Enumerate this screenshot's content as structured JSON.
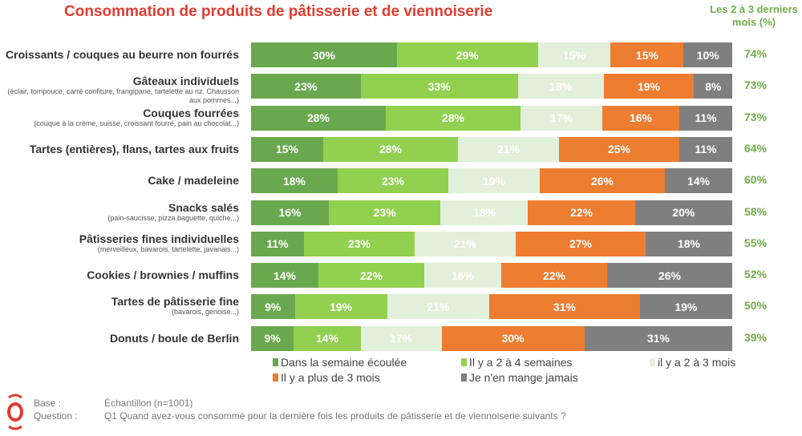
{
  "title": "Consommation de produits de pâtisserie et de viennoiserie",
  "total_header": "Les 2 à 3 derniers mois (%)",
  "colors": [
    "#6aa84f",
    "#92d050",
    "#e2efda",
    "#ed7d31",
    "#7f7f7f"
  ],
  "total_color": "#70ad47",
  "chart_data": {
    "type": "bar",
    "orientation": "horizontal",
    "stacked": true,
    "title": "Consommation de produits de pâtisserie et de viennoiserie",
    "legend_position": "bottom",
    "series_names": [
      "Dans la semaine écoulée",
      "Il y a 2 à 4 semaines",
      "il y a 2 à 3 mois",
      "Il y a plus de 3 mois",
      "Je n'en mange jamais"
    ],
    "rows": [
      {
        "label": "Croissants / couques au beurre non fourrés",
        "sub": "",
        "values": [
          30,
          29,
          15,
          15,
          10
        ],
        "total": "74%"
      },
      {
        "label": "Gâteaux individuels",
        "sub": "(éclair, tompouce, carré confiture, frangipane, tartelette au riz, Chausson aux pommes...)",
        "values": [
          23,
          33,
          18,
          19,
          8
        ],
        "total": "73%"
      },
      {
        "label": "Couques fourrées",
        "sub": "(couque à la crème, suisse, croissant fourré, pain au chocolat...)",
        "values": [
          28,
          28,
          17,
          16,
          11
        ],
        "total": "73%"
      },
      {
        "label": "Tartes (entières), flans, tartes aux fruits",
        "sub": "",
        "values": [
          15,
          28,
          21,
          25,
          11
        ],
        "total": "64%"
      },
      {
        "label": "Cake / madeleine",
        "sub": "",
        "values": [
          18,
          23,
          19,
          26,
          14
        ],
        "total": "60%"
      },
      {
        "label": "Snacks salés",
        "sub": "(pain-saucisse, pizza baguette, quiche...)",
        "values": [
          16,
          23,
          18,
          22,
          20
        ],
        "total": "58%"
      },
      {
        "label": "Pâtisseries fines individuelles",
        "sub": "(merveilleux, bavarois, tartelette, javanais...)",
        "values": [
          11,
          23,
          21,
          27,
          18
        ],
        "total": "55%"
      },
      {
        "label": "Cookies / brownies / muffins",
        "sub": "",
        "values": [
          14,
          22,
          16,
          22,
          26
        ],
        "total": "52%"
      },
      {
        "label": "Tartes de pâtisserie fine",
        "sub": "(bavarois, génoise...)",
        "values": [
          9,
          19,
          21,
          31,
          19
        ],
        "total": "50%"
      },
      {
        "label": "Donuts / boule de Berlin",
        "sub": "",
        "values": [
          9,
          14,
          17,
          30,
          31
        ],
        "total": "39%"
      }
    ]
  },
  "footer": {
    "base_label": "Base :",
    "base_value": "Échantillon (n=1001)",
    "question_label": "Question :",
    "question_value": "Q1 Quand avez-vous consommé pour la dernière fois les produits de pâtisserie et de viennoiserie suivants ?"
  }
}
